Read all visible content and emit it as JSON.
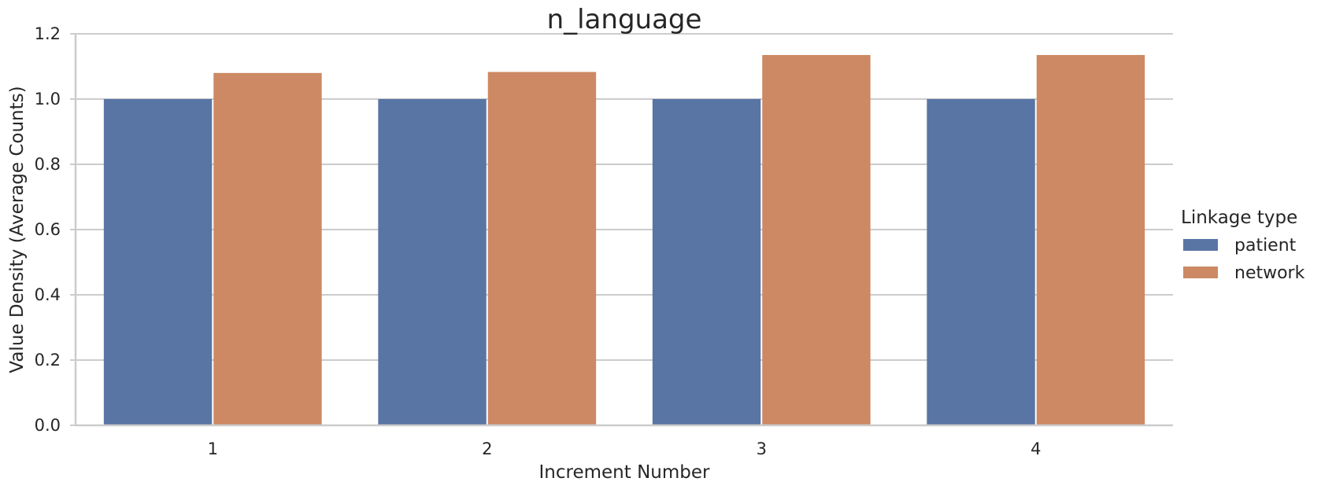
{
  "chart_data": {
    "type": "bar",
    "title": "n_language",
    "xlabel": "Increment Number",
    "ylabel": "Value Density (Average Counts)",
    "categories": [
      "1",
      "2",
      "3",
      "4"
    ],
    "series": [
      {
        "name": "patient",
        "color": "#5975a4",
        "values": [
          1.0,
          1.0,
          1.0,
          1.0
        ]
      },
      {
        "name": "network",
        "color": "#cc8963",
        "values": [
          1.08,
          1.083,
          1.135,
          1.135
        ]
      }
    ],
    "ylim": [
      0,
      1.2
    ],
    "yticks": [
      "0.0",
      "0.2",
      "0.4",
      "0.6",
      "0.8",
      "1.0",
      "1.2"
    ],
    "grid": "horizontal",
    "legend": {
      "title": "Linkage type",
      "placement": "right"
    }
  }
}
